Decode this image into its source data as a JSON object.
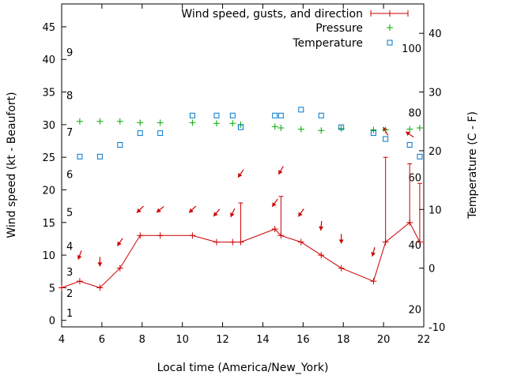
{
  "chart_data": {
    "type": "line",
    "title": "",
    "xlabel": "Local time (America/New_York)",
    "ylabel": "Wind speed (kt - Beaufort)",
    "y2label": "Temperature (C - F)",
    "xlim": [
      4,
      22
    ],
    "ylim": [
      -1,
      48.5
    ],
    "y2lim": [
      -10,
      45
    ],
    "x_ticks": [
      4,
      6,
      8,
      10,
      12,
      14,
      16,
      18,
      20,
      22
    ],
    "y_ticks": [
      0,
      5,
      10,
      15,
      20,
      25,
      30,
      35,
      40,
      45
    ],
    "y2_ticks": [
      -10,
      0,
      10,
      20,
      30,
      40
    ],
    "beaufort_labels": [
      {
        "label": "1",
        "y": 1.2
      },
      {
        "label": "2",
        "y": 4.2
      },
      {
        "label": "3",
        "y": 7.5
      },
      {
        "label": "4",
        "y": 11.4
      },
      {
        "label": "5",
        "y": 16.6
      },
      {
        "label": "6",
        "y": 22.4
      },
      {
        "label": "7",
        "y": 28.9
      },
      {
        "label": "8",
        "y": 34.5
      },
      {
        "label": "9",
        "y": 41.1
      }
    ],
    "fahrenheit_labels": [
      {
        "label": "20",
        "y2": -7
      },
      {
        "label": "40",
        "y2": 4
      },
      {
        "label": "60",
        "y2": 15.5
      },
      {
        "label": "80",
        "y2": 26.5
      },
      {
        "label": "100",
        "y2": 37.5
      }
    ],
    "legend": {
      "position": "top-right",
      "entries": [
        "Wind speed, gusts, and direction",
        "Pressure",
        "Temperature"
      ]
    },
    "colors": {
      "wind": "#cc0000",
      "pressure": "#00aa00",
      "temperature": "#0077cc"
    },
    "series": [
      {
        "name": "Wind speed, gusts, and direction",
        "axis": "left",
        "x": [
          4,
          4.9,
          5.9,
          6.9,
          7.9,
          8.9,
          10.5,
          11.7,
          12.5,
          12.9,
          14.6,
          14.9,
          15.9,
          16.9,
          17.9,
          19.5,
          20.1,
          21.3,
          21.8
        ],
        "y": [
          5,
          6,
          5,
          8,
          13,
          13,
          13,
          12,
          12,
          12,
          14,
          13,
          12,
          10,
          8,
          6,
          12,
          15,
          12
        ]
      },
      {
        "name": "gusts",
        "axis": "left",
        "segments": [
          {
            "x": 12.9,
            "from": 12,
            "to": 18
          },
          {
            "x": 14.9,
            "from": 13,
            "to": 19
          },
          {
            "x": 20.1,
            "from": 12,
            "to": 25
          },
          {
            "x": 21.3,
            "from": 15,
            "to": 24
          },
          {
            "x": 21.8,
            "from": 12,
            "to": 21
          }
        ]
      },
      {
        "name": "Wind direction",
        "axis": "left",
        "arrows": [
          {
            "x": 4.9,
            "y": 10,
            "angle": 200
          },
          {
            "x": 5.9,
            "y": 9,
            "angle": 180
          },
          {
            "x": 6.9,
            "y": 12,
            "angle": 215
          },
          {
            "x": 7.9,
            "y": 17,
            "angle": 225
          },
          {
            "x": 8.9,
            "y": 17,
            "angle": 230
          },
          {
            "x": 10.5,
            "y": 17,
            "angle": 225
          },
          {
            "x": 11.7,
            "y": 16.5,
            "angle": 220
          },
          {
            "x": 12.5,
            "y": 16.5,
            "angle": 205
          },
          {
            "x": 12.9,
            "y": 22.5,
            "angle": 215
          },
          {
            "x": 14.6,
            "y": 18,
            "angle": 215
          },
          {
            "x": 14.9,
            "y": 23,
            "angle": 210
          },
          {
            "x": 15.9,
            "y": 16.5,
            "angle": 215
          },
          {
            "x": 16.9,
            "y": 14.5,
            "angle": 185
          },
          {
            "x": 17.9,
            "y": 12.5,
            "angle": 180
          },
          {
            "x": 19.5,
            "y": 10.5,
            "angle": 195
          },
          {
            "x": 20.1,
            "y": 29,
            "angle": 330
          },
          {
            "x": 21.3,
            "y": 28.5,
            "angle": 305
          }
        ]
      },
      {
        "name": "Pressure",
        "axis": "left",
        "x": [
          4.9,
          5.9,
          6.9,
          7.9,
          8.9,
          10.5,
          11.7,
          12.5,
          12.9,
          14.6,
          14.9,
          15.9,
          16.9,
          17.9,
          19.5,
          20.1,
          21.3,
          21.8
        ],
        "y": [
          30.5,
          30.5,
          30.5,
          30.3,
          30.3,
          30.3,
          30.2,
          30.2,
          30,
          29.7,
          29.5,
          29.3,
          29.1,
          29.4,
          29.2,
          29.2,
          29.3,
          29.5
        ]
      },
      {
        "name": "Temperature",
        "axis": "right",
        "x": [
          4.9,
          5.9,
          6.9,
          7.9,
          8.9,
          10.5,
          11.7,
          12.5,
          12.9,
          14.6,
          14.9,
          15.9,
          16.9,
          17.9,
          19.5,
          20.1,
          21.3,
          21.8
        ],
        "y": [
          19,
          19,
          21,
          23,
          23,
          26,
          26,
          26,
          24,
          26,
          26,
          27,
          26,
          24,
          23,
          22,
          21,
          19
        ]
      }
    ]
  }
}
